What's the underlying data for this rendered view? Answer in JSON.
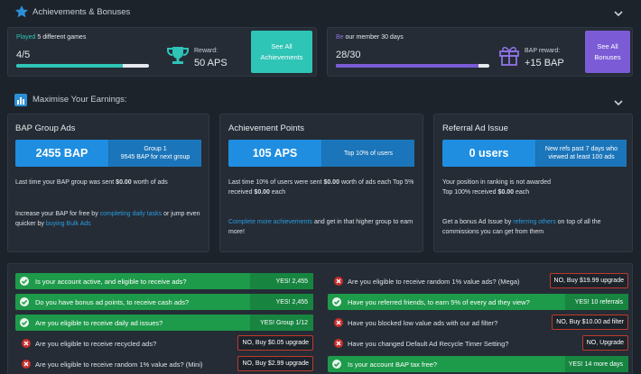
{
  "header": {
    "title": "Achievements & Bonuses"
  },
  "achievements": {
    "played_prefix": "Played",
    "played_suffix": "5 different games",
    "progress_label": "4/5",
    "progress": 0.8,
    "reward_label": "Reward:",
    "reward_value": "50 APS",
    "button": "See All Achievements"
  },
  "membership": {
    "prefix": "Be",
    "suffix": "our member 30 days",
    "progress_label": "28/30",
    "progress": 0.93,
    "reward_label": "BAP reward:",
    "reward_value": "+15 BAP",
    "button": "See All Bonuses"
  },
  "earnings": {
    "title": "Maximise Your Earnings:"
  },
  "bap_group": {
    "title": "BAP Group Ads",
    "value": "2455 BAP",
    "sub1": "Group 1",
    "sub2": "9545 BAP for next group",
    "text_prefix": "Last time your BAP group was sent",
    "text_amount": "$0.00",
    "text_suffix": "worth of ads",
    "increase_prefix": "Increase your BAP for free by",
    "increase_link1": "completing daily tasks",
    "increase_mid": "or jump even quicker by",
    "increase_link2": "buying Bulk Ads"
  },
  "achievement_points": {
    "title": "Achievement Points",
    "value": "105 APS",
    "sub": "Top 10% of users",
    "text_1": "Last time 10% of users were sent",
    "text_amount1": "$0.00",
    "text_2": "worth of ads each Top 5% received",
    "text_amount2": "$0.00",
    "text_3": "each",
    "link": "Complete more achievements",
    "link_suffix": "and get in that higher group to earn more!"
  },
  "referral": {
    "title": "Referral Ad Issue",
    "value": "0 users",
    "sub": "New refs past 7 days who viewed at least 100 ads",
    "text_1": "Your position in ranking is not awarded",
    "text_2": "Top 100% received",
    "text_amount": "$0.00",
    "text_3": "each",
    "bonus_prefix": "Get a bonus Ad Issue by",
    "bonus_link": "referring others",
    "bonus_suffix": "on top of all the commissions you can get from them"
  },
  "checks_left": [
    {
      "question": "Is your account active, and eligible to receive ads?",
      "status": "yes",
      "result": "YES! 2,455"
    },
    {
      "question": "Do you have bonus ad points, to receive cash ads?",
      "status": "yes",
      "result": "YES! 2,455"
    },
    {
      "question": "Are you eligible to receive daily ad issues?",
      "status": "yes",
      "result": "YES! Group 1/12"
    },
    {
      "question": "Are you eligible to receive recycled ads?",
      "status": "no",
      "result": "NO, Buy $0.05 upgrade"
    },
    {
      "question": "Are you eligible to receive random 1% value ads? (Mini)",
      "status": "no",
      "result": "NO, Buy $2.99 upgrade"
    }
  ],
  "checks_right": [
    {
      "question": "Are you eligible to receive random 1% value ads? (Mega)",
      "status": "no",
      "result": "NO, Buy $19.99 upgrade"
    },
    {
      "question": "Have you referred friends, to earn 5% of every ad they view?",
      "status": "yes",
      "result": "YES! 10 referrals"
    },
    {
      "question": "Have you blocked low value ads with our ad filter?",
      "status": "no",
      "result": "NO, Buy $10.00 ad filter"
    },
    {
      "question": "Have you changed Default Ad Recycle Timer Setting?",
      "status": "no",
      "result": "NO, Upgrade"
    },
    {
      "question": "Is your account BAP tax free?",
      "status": "yes",
      "result": "YES! 14 more days"
    }
  ],
  "colors": {
    "accent_teal": "#2ec4b6",
    "accent_purple": "#7b5cd6",
    "blue": "#1f8ee0",
    "green": "#1d9a4a",
    "red": "#c9302c"
  }
}
